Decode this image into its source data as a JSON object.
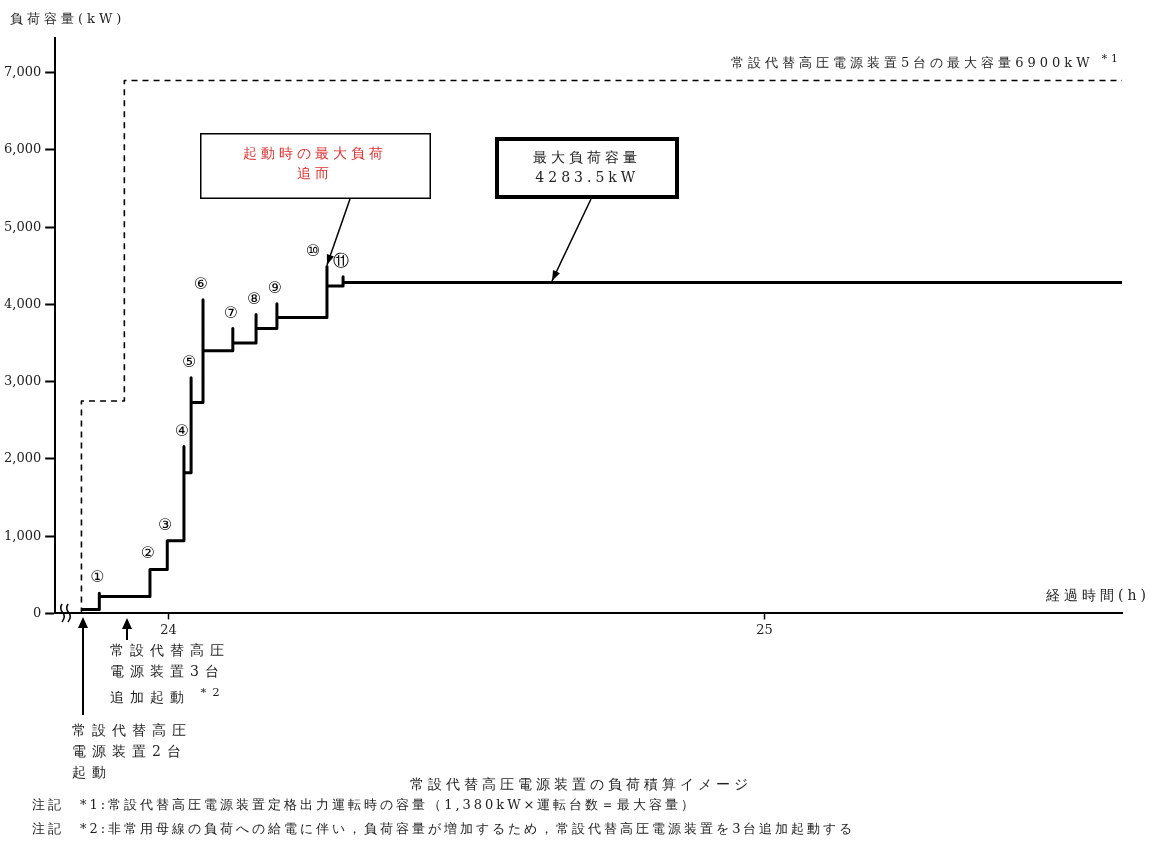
{
  "chart_data": {
    "type": "line",
    "title": "常設代替高圧電源装置の負荷積算イメージ",
    "xlabel": "経過時間(h)",
    "ylabel": "負荷容量(kW)",
    "xlim": [
      23.81,
      25.6
    ],
    "xticks": [
      24,
      25
    ],
    "ylim": [
      0,
      7450
    ],
    "yticks": [
      0,
      {
        "value": 1000,
        "label": "1,000"
      },
      {
        "value": 2000,
        "label": "2,000"
      },
      {
        "value": 3000,
        "label": "3,000"
      },
      {
        "value": 4000,
        "label": "4,000"
      },
      {
        "value": 5000,
        "label": "5,000"
      },
      {
        "value": 6000,
        "label": "6,000"
      },
      {
        "value": 7000,
        "label": "7,000"
      }
    ],
    "grid": false,
    "series": [
      {
        "type": "line",
        "color": "#000000",
        "line_style": "solid",
        "x": [
          23.854,
          23.884,
          23.884,
          23.884,
          23.969,
          23.969,
          23.998,
          23.998,
          24.026,
          24.026,
          24.026,
          24.038,
          24.038,
          24.038,
          24.058,
          24.058,
          24.058,
          24.108,
          24.108,
          24.108,
          24.147,
          24.147,
          24.147,
          24.182,
          24.182,
          24.182,
          24.266,
          24.266,
          24.266,
          24.293,
          24.293,
          24.293,
          25.6
        ],
        "values": [
          50,
          50,
          260,
          220,
          220,
          570,
          570,
          940,
          940,
          2160,
          1820,
          1820,
          3050,
          2730,
          2730,
          4060,
          3400,
          3400,
          3690,
          3500,
          3500,
          3870,
          3690,
          3690,
          4010,
          3830,
          3830,
          4490,
          4240,
          4240,
          4360,
          4283.5,
          4283.5
        ]
      },
      {
        "type": "line",
        "color": "#000000",
        "line_style": "dashed",
        "x": [
          23.854,
          23.854,
          23.926,
          23.926,
          25.6
        ],
        "values": [
          0,
          2750,
          2750,
          6900,
          6900
        ]
      }
    ],
    "annotations": [
      {
        "text": "①",
        "x": 23.884,
        "y": 260
      },
      {
        "text": "②",
        "x": 23.969,
        "y": 575
      },
      {
        "text": "③",
        "x": 23.998,
        "y": 940
      },
      {
        "text": "④",
        "x": 24.026,
        "y": 2160
      },
      {
        "text": "⑤",
        "x": 24.038,
        "y": 3050
      },
      {
        "text": "⑥",
        "x": 24.058,
        "y": 4060
      },
      {
        "text": "⑦",
        "x": 24.108,
        "y": 3690
      },
      {
        "text": "⑧",
        "x": 24.147,
        "y": 3870
      },
      {
        "text": "⑨",
        "x": 24.182,
        "y": 4010
      },
      {
        "text": "⑩",
        "x": 24.266,
        "y": 4490
      },
      {
        "text": "⑪",
        "x": 24.293,
        "y": 4360
      },
      "常設代替高圧電源装置5台の最大容量6900kW $^{*1}$",
      {
        "text": "起動時の最大負荷追而",
        "x": 24.266,
        "y": 4490
      },
      {
        "text": "最大負荷容量4283.5kW",
        "x": 24.644,
        "y": 4283.5
      },
      "常設代替高圧電源装置2台起動",
      "常設代替高圧電源装置3台追加起動 $^{*2}$",
      "注記　*1:常設代替高圧電源装置定格出力運転時の容量（1,380kW×運転台数＝最大容量）",
      "注記　*2:非常用母線の負荷への給電に伴い，負荷容量が増加するため，常設代替高圧電源装置を3台追加起動する"
    ]
  }
}
